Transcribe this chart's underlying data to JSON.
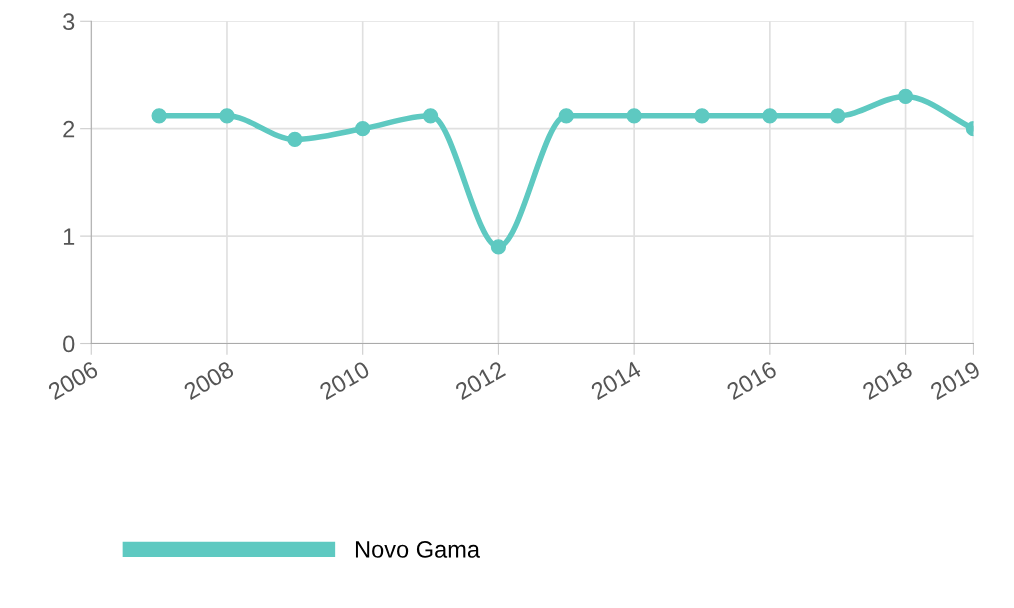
{
  "chart_data": {
    "type": "line",
    "x": [
      2007,
      2008,
      2009,
      2010,
      2011,
      2012,
      2013,
      2014,
      2015,
      2016,
      2017,
      2018,
      2019
    ],
    "series": [
      {
        "name": "Novo Gama",
        "color": "#5ec9c1",
        "values": [
          2.12,
          2.12,
          1.9,
          2.0,
          2.12,
          0.9,
          2.12,
          2.12,
          2.12,
          2.12,
          2.12,
          2.3,
          2.0
        ]
      }
    ],
    "xlim": [
      2006,
      2019
    ],
    "xticks": [
      2006,
      2008,
      2010,
      2012,
      2014,
      2016,
      2018,
      2019
    ],
    "ylim": [
      0,
      3
    ],
    "yticks": [
      0,
      1,
      2,
      3
    ],
    "grid": true,
    "legend": "bottom left",
    "marker": "circle",
    "line_style": "solid"
  }
}
